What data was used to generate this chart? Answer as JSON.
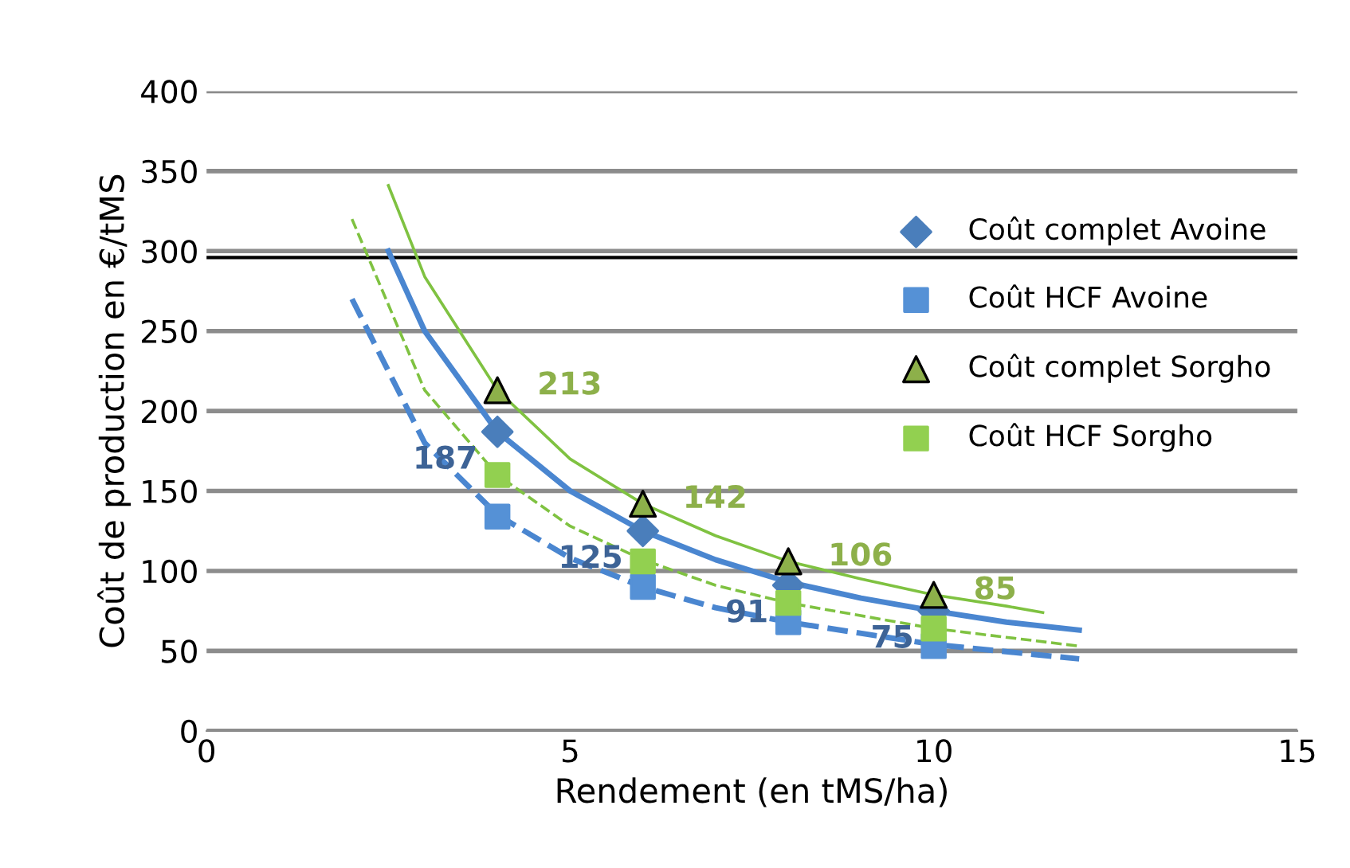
{
  "chart_data": {
    "type": "scatter",
    "xlabel": "Rendement (en tMS/ha)",
    "ylabel": "Coût de production en €/tMS",
    "xlim": [
      0,
      15
    ],
    "xticks": [
      0,
      5,
      10,
      15
    ],
    "ylim": [
      0,
      400
    ],
    "yticks": [
      0,
      50,
      100,
      150,
      200,
      250,
      300,
      350,
      400
    ],
    "grid": "y",
    "legend": "right",
    "x": [
      4,
      6,
      8,
      10
    ],
    "series": [
      {
        "name": "Coût complet Avoine",
        "color": "#4a7ebb",
        "marker": "diamond",
        "values": [
          187,
          125,
          91,
          75
        ],
        "value_labels": [
          "187",
          "125",
          "91",
          "75"
        ]
      },
      {
        "name": "Coût HCF Avoine",
        "color": "#5591d6",
        "marker": "square",
        "values": [
          134,
          90,
          68,
          53
        ]
      },
      {
        "name": "Coût complet Sorgho",
        "color": "#8db04a",
        "marker": "triangle",
        "values": [
          213,
          142,
          106,
          85
        ],
        "value_labels": [
          "213",
          "142",
          "106",
          "85"
        ]
      },
      {
        "name": "Coût HCF Sorgho",
        "color": "#92d050",
        "marker": "square",
        "values": [
          160,
          106,
          80,
          64
        ]
      },
      {
        "type": "line",
        "color": "#4a86d0",
        "line_style": "solid",
        "x": [
          2.5,
          3,
          4,
          5,
          6,
          7,
          8,
          9,
          10,
          11,
          12
        ],
        "values": [
          300,
          250,
          187,
          150,
          125,
          107,
          93,
          83,
          75,
          68,
          63
        ]
      },
      {
        "type": "line",
        "color": "#4a86d0",
        "line_style": "dashed",
        "x": [
          2,
          3,
          4,
          5,
          6,
          7,
          8,
          10,
          12
        ],
        "values": [
          270,
          180,
          135,
          108,
          90,
          77,
          68,
          54,
          45
        ]
      },
      {
        "type": "line",
        "color": "#7fc241",
        "line_style": "solid",
        "x": [
          2.5,
          3,
          4,
          5,
          6,
          7,
          8,
          9,
          10,
          11,
          11.5
        ],
        "values": [
          341,
          284,
          213,
          170,
          142,
          122,
          106,
          95,
          85,
          78,
          74
        ]
      },
      {
        "type": "line",
        "color": "#7fc241",
        "line_style": "dashed",
        "x": [
          2,
          3,
          4,
          5,
          6,
          7,
          8,
          10,
          12
        ],
        "values": [
          320,
          213,
          160,
          128,
          107,
          91,
          80,
          64,
          53
        ]
      }
    ],
    "ref_lines": [
      {
        "axis": "y",
        "value": 296,
        "color": "#000000"
      }
    ]
  }
}
